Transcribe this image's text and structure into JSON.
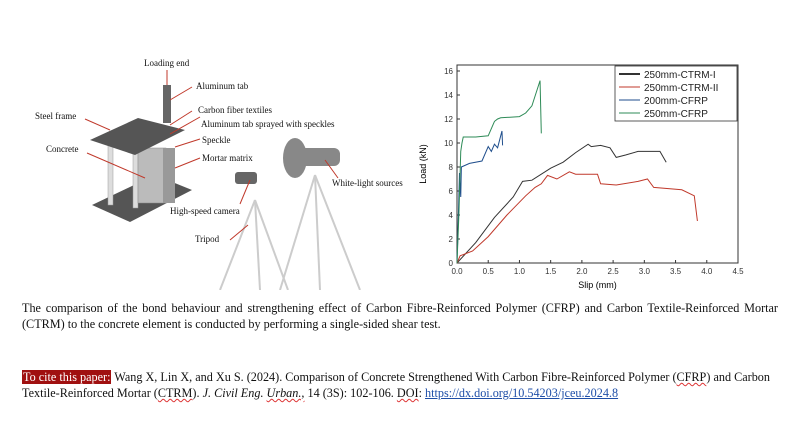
{
  "figure": {
    "labels": {
      "loading_end": "Loading end",
      "aluminum_tab": "Aluminum tab",
      "carbon_fiber": "Carbon fiber textiles",
      "aluminum_speckles": "Aluminum tab sprayed with speckles",
      "steel_frame": "Steel frame",
      "speckle": "Speckle",
      "concrete": "Concrete",
      "mortar": "Mortar matrix",
      "white_light": "White-light sources",
      "camera": "High-speed camera",
      "tripod": "Tripod"
    }
  },
  "chart_data": {
    "type": "line",
    "xlabel": "Slip (mm)",
    "ylabel": "Load (kN)",
    "xlim": [
      0,
      4.5
    ],
    "ylim": [
      0,
      16.5
    ],
    "xticks": [
      "0.0",
      "0.5",
      "1.0",
      "1.5",
      "2.0",
      "2.5",
      "3.0",
      "3.5",
      "4.0",
      "4.5"
    ],
    "yticks": [
      "0",
      "2",
      "4",
      "6",
      "8",
      "10",
      "12",
      "14",
      "16"
    ],
    "grid": false,
    "legend": "top-right",
    "series": [
      {
        "name": "250mm-CTRM-I",
        "color": "#333333",
        "points": [
          [
            0,
            0
          ],
          [
            0.3,
            1.7
          ],
          [
            0.6,
            3.8
          ],
          [
            0.9,
            5.5
          ],
          [
            1.05,
            6.8
          ],
          [
            1.2,
            6.9
          ],
          [
            1.5,
            7.9
          ],
          [
            1.7,
            8.4
          ],
          [
            1.9,
            9.2
          ],
          [
            2.1,
            9.9
          ],
          [
            2.15,
            9.7
          ],
          [
            2.3,
            9.8
          ],
          [
            2.45,
            9.6
          ],
          [
            2.55,
            8.8
          ],
          [
            2.7,
            9.0
          ],
          [
            2.9,
            9.3
          ],
          [
            3.1,
            9.3
          ],
          [
            3.25,
            9.3
          ],
          [
            3.35,
            8.4
          ]
        ]
      },
      {
        "name": "250mm-CTRM-II",
        "color": "#c0392b",
        "points": [
          [
            0,
            0
          ],
          [
            0.05,
            0.6
          ],
          [
            0.25,
            1.0
          ],
          [
            0.5,
            2.2
          ],
          [
            0.8,
            4.0
          ],
          [
            1.1,
            5.6
          ],
          [
            1.25,
            6.3
          ],
          [
            1.35,
            6.6
          ],
          [
            1.45,
            7.3
          ],
          [
            1.6,
            7.0
          ],
          [
            1.8,
            7.6
          ],
          [
            1.9,
            7.4
          ],
          [
            2.25,
            7.4
          ],
          [
            2.3,
            6.6
          ],
          [
            2.55,
            6.5
          ],
          [
            2.9,
            6.8
          ],
          [
            3.05,
            7.0
          ],
          [
            3.15,
            6.3
          ],
          [
            3.6,
            6.1
          ],
          [
            3.8,
            5.6
          ],
          [
            3.85,
            3.5
          ]
        ]
      },
      {
        "name": "200mm-CFRP",
        "color": "#1f4e8c",
        "points": [
          [
            0,
            0
          ],
          [
            0.02,
            3.5
          ],
          [
            0.04,
            7.5
          ],
          [
            0.06,
            5.5
          ],
          [
            0.07,
            8.0
          ],
          [
            0.2,
            8.3
          ],
          [
            0.4,
            8.5
          ],
          [
            0.5,
            9.7
          ],
          [
            0.55,
            9.3
          ],
          [
            0.6,
            9.9
          ],
          [
            0.65,
            9.6
          ],
          [
            0.72,
            11.0
          ],
          [
            0.73,
            9.8
          ]
        ]
      },
      {
        "name": "250mm-CFRP",
        "color": "#2e8b57",
        "points": [
          [
            0,
            0
          ],
          [
            0.03,
            4.0
          ],
          [
            0.06,
            9.3
          ],
          [
            0.08,
            10.0
          ],
          [
            0.1,
            10.5
          ],
          [
            0.3,
            10.5
          ],
          [
            0.5,
            10.6
          ],
          [
            0.6,
            11.8
          ],
          [
            0.65,
            12.0
          ],
          [
            0.7,
            12.1
          ],
          [
            1.0,
            12.2
          ],
          [
            1.1,
            12.5
          ],
          [
            1.15,
            12.8
          ],
          [
            1.2,
            13.1
          ],
          [
            1.33,
            15.2
          ],
          [
            1.35,
            10.8
          ]
        ]
      }
    ]
  },
  "caption": "The comparison of the bond behaviour and strengthening effect of Carbon Fibre-Reinforced Polymer (CFRP) and Carbon Textile-Reinforced Mortar (CTRM) to the concrete element is conducted by performing a single-sided shear test.",
  "citation": {
    "tag": "To cite this paper:",
    "authors": " Wang X, Lin X, and Xu S. (2024). Comparison of Concrete Strengthened With Carbon Fibre-Reinforced Polymer (",
    "abbr1": "CFRP",
    "mid": ") and Carbon Textile-Reinforced Mortar (",
    "abbr2": "CTRM",
    "after": "). ",
    "journal": "J. Civil Eng. ",
    "journal2": "Urban.,",
    "volume": " 14 (3S): 102-106. ",
    "doi_label": "DOI",
    "doi_sep": ": ",
    "doi": "https://dx.doi.org/10.54203/jceu.2024.8"
  }
}
